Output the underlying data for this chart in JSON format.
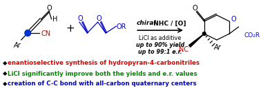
{
  "bg_color": "#ffffff",
  "border_color": "#e0e0e0",
  "bullet_color": "#000000",
  "bullet_char": "◆",
  "lines": [
    {
      "text": "enantioselective synthesis of hydropyran-4-carbonitriles",
      "color": "#dd0000"
    },
    {
      "text": "LiCl significantly improve both the yields and e.r. values",
      "color": "#008800"
    },
    {
      "text": "creation of C-C bond with all-carbon quaternary centers",
      "color": "#0000cc"
    }
  ],
  "below_arrow_lines": [
    {
      "text": "LiCl as additive",
      "italic": false,
      "bold": false
    },
    {
      "text": "up to 90% yield",
      "italic": true,
      "bold": true
    },
    {
      "text": "up to 99:1 e.r.",
      "italic": true,
      "bold": true
    }
  ],
  "reactant1_color_cn": "#cc0000",
  "reactant1_color_n": "#0000ff",
  "reactant2_color": "#0000ff",
  "product_color_o": "#0000ff",
  "product_color_nc": "#cc0000",
  "product_color_co2r": "#0000ff"
}
